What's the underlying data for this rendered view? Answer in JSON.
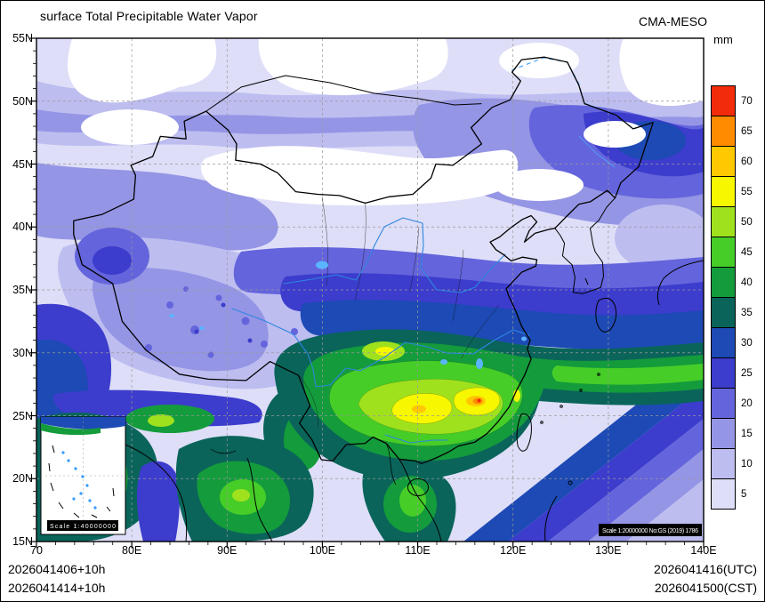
{
  "header": {
    "title": "surface Total Precipitable Water Vapor",
    "model": "CMA-MESO"
  },
  "colorbar": {
    "unit": "mm",
    "levels": [
      5,
      10,
      15,
      20,
      25,
      30,
      35,
      40,
      45,
      50,
      55,
      60,
      65,
      70
    ],
    "colors": [
      "#dedef8",
      "#bdbdf0",
      "#9595e6",
      "#6464dc",
      "#3c3ccd",
      "#1d4ab4",
      "#0a645a",
      "#149b3c",
      "#46cd28",
      "#a0e11e",
      "#f7f700",
      "#ffc800",
      "#ff8c00",
      "#f22b0a"
    ]
  },
  "axes": {
    "lat_labels": [
      "55N",
      "50N",
      "45N",
      "40N",
      "35N",
      "30N",
      "25N",
      "20N",
      "15N"
    ],
    "lon_labels": [
      "70",
      "80E",
      "90E",
      "100E",
      "110E",
      "120E",
      "130E",
      "140E"
    ]
  },
  "map": {
    "inset_scale": "Scale 1:40000000",
    "map_scale": "Scale 1:20000000 No:GS (2019) 1786"
  },
  "footer": {
    "left_line1": "2026041406+10h",
    "left_line2": "2026041414+10h",
    "right_line1": "2026041416(UTC)",
    "right_line2": "2026041500(CST)"
  }
}
